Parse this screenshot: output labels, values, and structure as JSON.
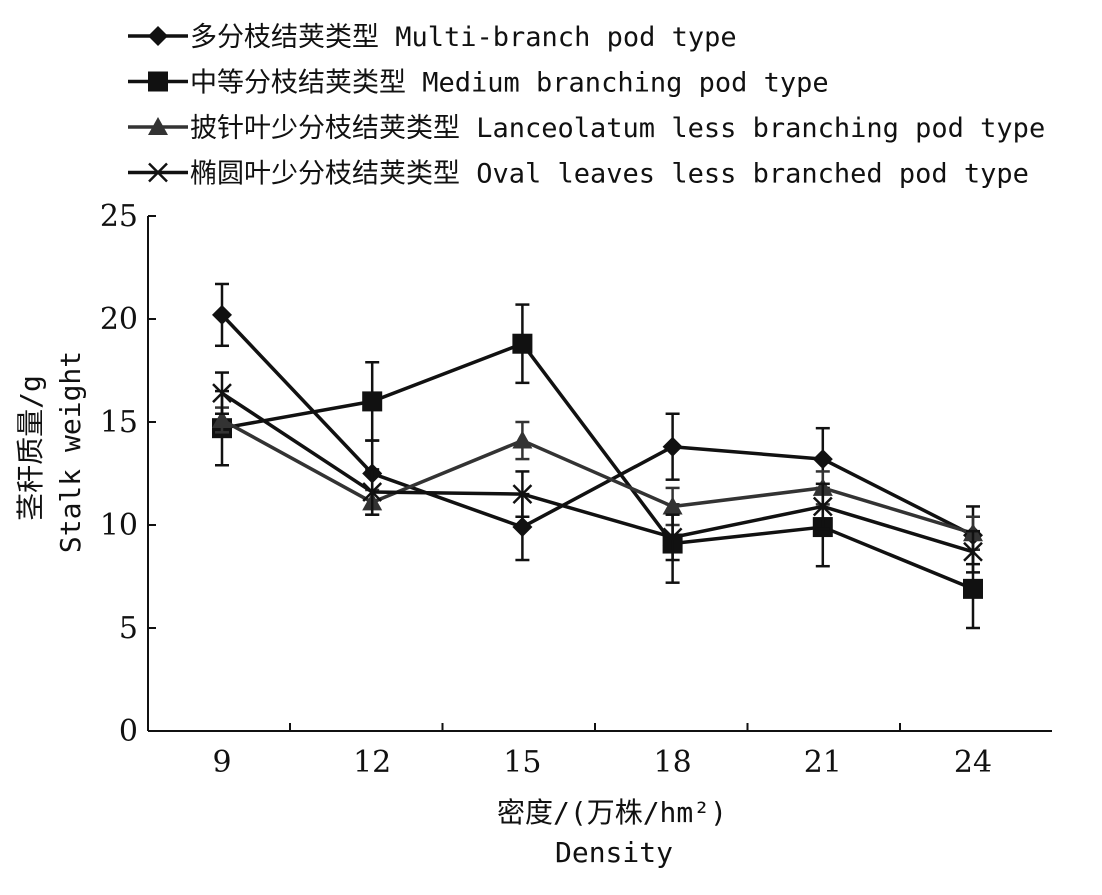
{
  "chart_data": {
    "type": "line",
    "categories": [
      "9",
      "12",
      "15",
      "18",
      "21",
      "24"
    ],
    "series": [
      {
        "name": "多分枝结荚类型 Multi-branch pod type",
        "marker": "diamond",
        "color": "#111111",
        "values": [
          20.2,
          12.5,
          9.9,
          13.8,
          13.2,
          9.5
        ],
        "errors": [
          1.5,
          1.6,
          1.6,
          1.6,
          1.5,
          1.4
        ]
      },
      {
        "name": "中等分枝结荚类型 Medium branching pod type",
        "marker": "square",
        "color": "#111111",
        "values": [
          14.7,
          16.0,
          18.8,
          9.1,
          9.9,
          6.9
        ],
        "errors": [
          1.8,
          1.9,
          1.9,
          1.9,
          1.9,
          1.9
        ]
      },
      {
        "name": "披针叶少分枝结荚类型 Lanceolatum less branching pod type",
        "marker": "triangle",
        "color": "#333333",
        "values": [
          15.1,
          11.1,
          14.1,
          10.9,
          11.8,
          9.6
        ],
        "errors": [
          0.6,
          0.6,
          0.9,
          0.9,
          0.8,
          0.8
        ]
      },
      {
        "name": "椭圆叶少分枝结荚类型 Oval leaves less branched pod type",
        "marker": "x",
        "color": "#111111",
        "values": [
          16.4,
          11.6,
          11.5,
          9.4,
          10.9,
          8.7
        ],
        "errors": [
          1.0,
          1.1,
          1.1,
          1.1,
          1.1,
          1.0
        ]
      }
    ],
    "xlabel": [
      "密度/(万株/hm²)",
      "Density"
    ],
    "ylabel": [
      "茎秆质量/g",
      "Stalk weight"
    ],
    "ylim": [
      0,
      25
    ],
    "yticks": [
      "0",
      "5",
      "10",
      "15",
      "20",
      "25"
    ],
    "grid": false,
    "legend_position": "top-left, above plot"
  }
}
